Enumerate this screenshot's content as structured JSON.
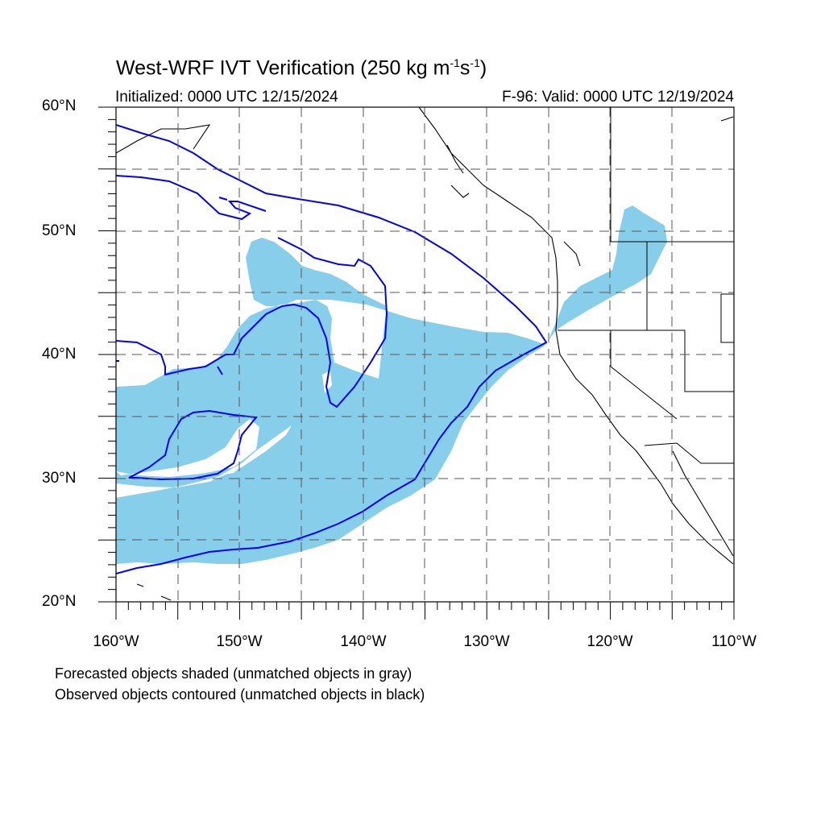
{
  "map": {
    "title_main": "West-WRF IVT Verification (250 kg m",
    "title_exp1": "-1",
    "title_mid": "s",
    "title_exp2": "-1",
    "title_end": ")",
    "initialized": "Initialized: 0000 UTC 12/15/2024",
    "valid": "F-96: Valid: 0000 UTC 12/19/2024",
    "lat_labels": [
      "60°N",
      "50°N",
      "40°N",
      "30°N",
      "20°N"
    ],
    "lon_labels": [
      "160°W",
      "150°W",
      "140°W",
      "130°W",
      "120°W",
      "110°W"
    ],
    "extent": {
      "lon_min": -160,
      "lon_max": -110,
      "lat_min": 20,
      "lat_max": 60
    },
    "notes": [
      "Forecasted objects shaded (unmatched objects in gray)",
      "Observed objects contoured (unmatched objects in black)"
    ],
    "colors": {
      "forecast_fill": "#87ceeb",
      "observed_contour": "#0000ff",
      "coastline": "#000000",
      "grid": "#555555"
    }
  }
}
